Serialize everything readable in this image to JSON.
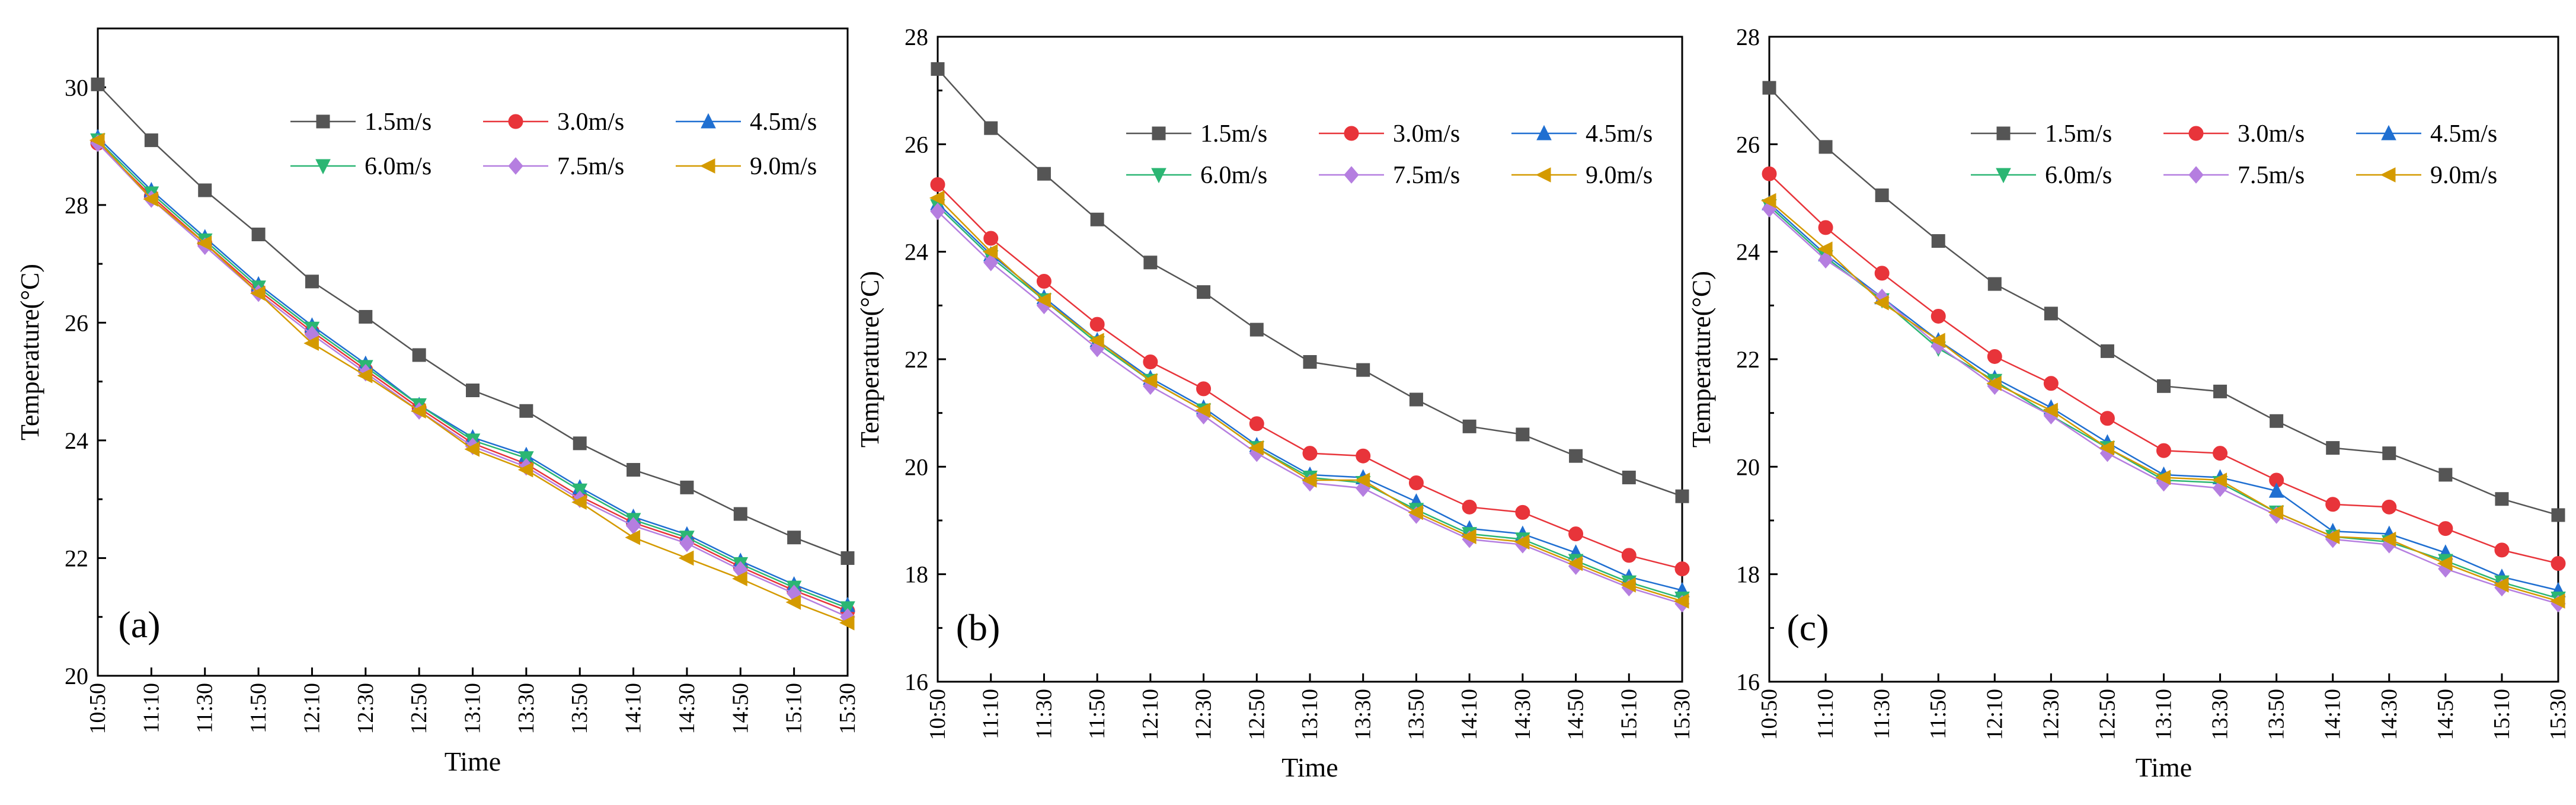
{
  "chart_data": [
    {
      "type": "line",
      "panel_label": "(a)",
      "xlabel": "Time",
      "ylabel": "Temperature(°C)",
      "categories": [
        "10:50",
        "11:10",
        "11:30",
        "11:50",
        "12:10",
        "12:30",
        "12:50",
        "13:10",
        "13:30",
        "13:50",
        "14:10",
        "14:30",
        "14:50",
        "15:10",
        "15:30"
      ],
      "ylim": [
        20,
        31
      ],
      "yticks": [
        20,
        22,
        24,
        26,
        28,
        30
      ],
      "legend_position": "top-right",
      "series": [
        {
          "name": "1.5m/s",
          "marker": "square",
          "color": "#555555",
          "values": [
            30.05,
            29.1,
            28.25,
            27.5,
            26.7,
            26.1,
            25.45,
            24.85,
            24.5,
            23.95,
            23.5,
            23.2,
            22.75,
            22.35,
            22.0
          ]
        },
        {
          "name": "3.0m/s",
          "marker": "circle",
          "color": "#e8343a",
          "values": [
            29.05,
            28.15,
            27.35,
            26.55,
            25.85,
            25.2,
            24.55,
            23.95,
            23.6,
            23.05,
            22.6,
            22.3,
            21.85,
            21.45,
            21.1
          ]
        },
        {
          "name": "4.5m/s",
          "marker": "triangle-up",
          "color": "#1f6fd1",
          "values": [
            29.15,
            28.25,
            27.45,
            26.65,
            25.95,
            25.3,
            24.6,
            24.05,
            23.75,
            23.2,
            22.7,
            22.4,
            21.95,
            21.55,
            21.2
          ]
        },
        {
          "name": "6.0m/s",
          "marker": "triangle-down",
          "color": "#2bb673",
          "values": [
            29.1,
            28.2,
            27.4,
            26.6,
            25.9,
            25.25,
            24.6,
            24.0,
            23.7,
            23.15,
            22.65,
            22.35,
            21.9,
            21.5,
            21.15
          ]
        },
        {
          "name": "7.5m/s",
          "marker": "diamond",
          "color": "#b57ee0",
          "values": [
            29.05,
            28.1,
            27.3,
            26.5,
            25.8,
            25.15,
            24.5,
            23.9,
            23.55,
            23.0,
            22.55,
            22.25,
            21.8,
            21.4,
            21.0
          ]
        },
        {
          "name": "9.0m/s",
          "marker": "triangle-left",
          "color": "#d49a00",
          "values": [
            29.1,
            28.1,
            27.35,
            26.5,
            25.65,
            25.1,
            24.5,
            23.85,
            23.5,
            22.95,
            22.35,
            22.0,
            21.65,
            21.25,
            20.9
          ]
        }
      ]
    },
    {
      "type": "line",
      "panel_label": "(b)",
      "xlabel": "Time",
      "ylabel": "Temperature(°C)",
      "categories": [
        "10:50",
        "11:10",
        "11:30",
        "11:50",
        "12:10",
        "12:30",
        "12:50",
        "13:10",
        "13:30",
        "13:50",
        "14:10",
        "14:30",
        "14:50",
        "15:10",
        "15:30"
      ],
      "ylim": [
        16,
        28
      ],
      "yticks": [
        16,
        18,
        20,
        22,
        24,
        26,
        28
      ],
      "legend_position": "top-right",
      "series": [
        {
          "name": "1.5m/s",
          "marker": "square",
          "color": "#555555",
          "values": [
            27.4,
            26.3,
            25.45,
            24.6,
            23.8,
            23.25,
            22.55,
            21.95,
            21.8,
            21.25,
            20.75,
            20.6,
            20.2,
            19.8,
            19.45
          ]
        },
        {
          "name": "3.0m/s",
          "marker": "circle",
          "color": "#e8343a",
          "values": [
            25.25,
            24.25,
            23.45,
            22.65,
            21.95,
            21.45,
            20.8,
            20.25,
            20.2,
            19.7,
            19.25,
            19.15,
            18.75,
            18.35,
            18.1
          ]
        },
        {
          "name": "4.5m/s",
          "marker": "triangle-up",
          "color": "#1f6fd1",
          "values": [
            24.9,
            23.95,
            23.15,
            22.35,
            21.65,
            21.1,
            20.4,
            19.85,
            19.8,
            19.35,
            18.85,
            18.75,
            18.4,
            17.95,
            17.7
          ]
        },
        {
          "name": "6.0m/s",
          "marker": "triangle-down",
          "color": "#2bb673",
          "values": [
            24.85,
            23.9,
            23.1,
            22.3,
            21.6,
            21.05,
            20.35,
            19.8,
            19.7,
            19.2,
            18.75,
            18.65,
            18.25,
            17.85,
            17.55
          ]
        },
        {
          "name": "7.5m/s",
          "marker": "diamond",
          "color": "#b57ee0",
          "values": [
            24.75,
            23.8,
            23.0,
            22.2,
            21.5,
            20.95,
            20.25,
            19.7,
            19.6,
            19.1,
            18.65,
            18.55,
            18.15,
            17.75,
            17.45
          ]
        },
        {
          "name": "9.0m/s",
          "marker": "triangle-left",
          "color": "#d49a00",
          "values": [
            25.0,
            24.0,
            23.1,
            22.35,
            21.6,
            21.05,
            20.35,
            19.75,
            19.75,
            19.15,
            18.7,
            18.6,
            18.2,
            17.8,
            17.5
          ]
        }
      ]
    },
    {
      "type": "line",
      "panel_label": "(c)",
      "xlabel": "Time",
      "ylabel": "Temperature(°C)",
      "categories": [
        "10:50",
        "11:10",
        "11:30",
        "11:50",
        "12:10",
        "12:30",
        "12:50",
        "13:10",
        "13:30",
        "13:50",
        "14:10",
        "14:30",
        "14:50",
        "15:10",
        "15:30"
      ],
      "ylim": [
        16,
        28
      ],
      "yticks": [
        16,
        18,
        20,
        22,
        24,
        26,
        28
      ],
      "legend_position": "top-right",
      "series": [
        {
          "name": "1.5m/s",
          "marker": "square",
          "color": "#555555",
          "values": [
            27.05,
            25.95,
            25.05,
            24.2,
            23.4,
            22.85,
            22.15,
            21.5,
            21.4,
            20.85,
            20.35,
            20.25,
            19.85,
            19.4,
            19.1
          ]
        },
        {
          "name": "3.0m/s",
          "marker": "circle",
          "color": "#e8343a",
          "values": [
            25.45,
            24.45,
            23.6,
            22.8,
            22.05,
            21.55,
            20.9,
            20.3,
            20.25,
            19.75,
            19.3,
            19.25,
            18.85,
            18.45,
            18.2
          ]
        },
        {
          "name": "4.5m/s",
          "marker": "triangle-up",
          "color": "#1f6fd1",
          "values": [
            24.9,
            23.95,
            23.15,
            22.35,
            21.65,
            21.1,
            20.45,
            19.85,
            19.8,
            19.55,
            18.8,
            18.75,
            18.4,
            17.95,
            17.7
          ]
        },
        {
          "name": "6.0m/s",
          "marker": "triangle-down",
          "color": "#2bb673",
          "values": [
            24.85,
            23.9,
            23.1,
            22.2,
            21.6,
            20.95,
            20.35,
            19.75,
            19.7,
            19.15,
            18.7,
            18.6,
            18.25,
            17.85,
            17.55
          ]
        },
        {
          "name": "7.5m/s",
          "marker": "diamond",
          "color": "#b57ee0",
          "values": [
            24.8,
            23.85,
            23.15,
            22.25,
            21.5,
            20.95,
            20.25,
            19.7,
            19.6,
            19.1,
            18.65,
            18.55,
            18.1,
            17.75,
            17.45
          ]
        },
        {
          "name": "9.0m/s",
          "marker": "triangle-left",
          "color": "#d49a00",
          "values": [
            24.95,
            24.05,
            23.05,
            22.35,
            21.55,
            21.05,
            20.35,
            19.8,
            19.75,
            19.15,
            18.7,
            18.65,
            18.2,
            17.8,
            17.5
          ]
        }
      ]
    }
  ]
}
